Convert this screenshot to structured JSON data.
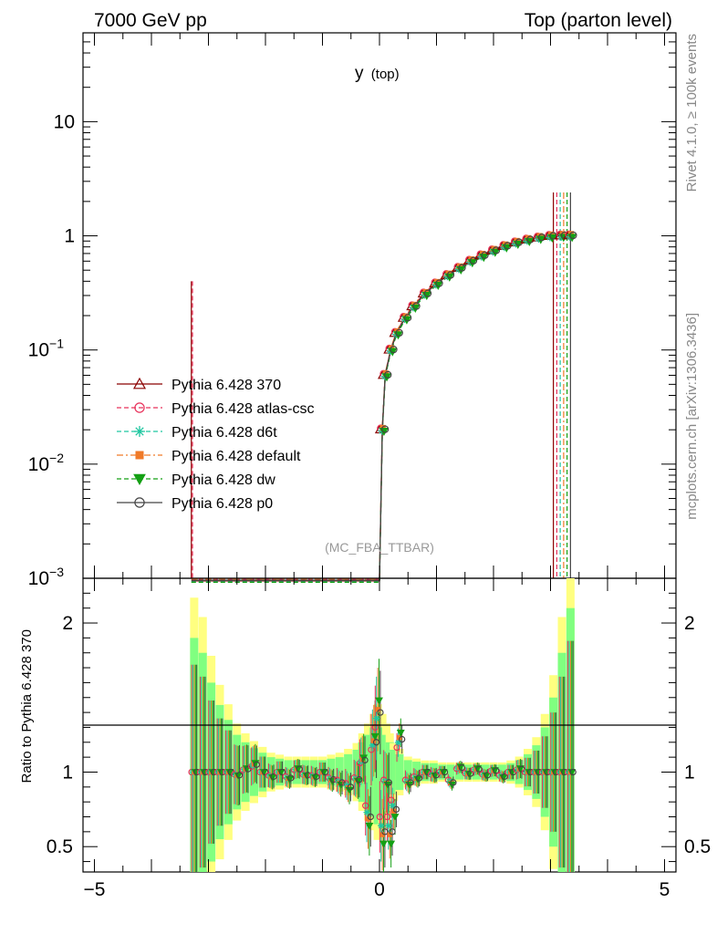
{
  "header": {
    "left": "7000 GeV pp",
    "right": "Top (parton level)"
  },
  "observable": {
    "main": "y",
    "sub": "(top)"
  },
  "side_labels": {
    "rivet": "Rivet 4.1.0, ≥ 100k events",
    "mcplots": "mcplots.cern.ch [arXiv:1306.3436]"
  },
  "analysis_label": "(MC_FBA_TTBAR)",
  "ratio_ylabel": "Ratio to Pythia 6.428 370",
  "colors": {
    "s370": "#8b0000",
    "atlas": "#e8305a",
    "d6t": "#1fc7a0",
    "default": "#f07a28",
    "dw": "#14a014",
    "p0": "#444444",
    "band_yellow": "#ffff80",
    "band_green": "#80ff80"
  },
  "chart_data": {
    "type": "line",
    "x_scale": "linear",
    "y_scale": "log",
    "xlim": [
      -5.2,
      5.2
    ],
    "ylim": [
      0.001,
      60
    ],
    "ratio_ylim": [
      0.33,
      2.3
    ],
    "x_ticks": [
      "−5",
      "0",
      "5"
    ],
    "y_ticks": [
      {
        "value": 10,
        "label": "10"
      },
      {
        "value": 1,
        "label": "1"
      },
      {
        "value": 0.1,
        "label": "10",
        "sup": "−1"
      },
      {
        "value": 0.01,
        "label": "10",
        "sup": "−2"
      },
      {
        "value": 0.001,
        "label": "10",
        "sup": "−3"
      }
    ],
    "ratio_ticks": [
      {
        "value": 0.5,
        "label": "0.5"
      },
      {
        "value": 1,
        "label": "1"
      },
      {
        "value": 2,
        "label": "2"
      }
    ],
    "legend_position": "center-left",
    "series": [
      {
        "name": "Pythia 6.428 370",
        "marker": "triangle-open",
        "dash": "",
        "color": "#8b0000"
      },
      {
        "name": "Pythia 6.428 atlas-csc",
        "marker": "circle-open",
        "dash": "5,3",
        "color": "#e8305a"
      },
      {
        "name": "Pythia 6.428 d6t",
        "marker": "star",
        "dash": "5,3",
        "color": "#1fc7a0"
      },
      {
        "name": "Pythia 6.428 default",
        "marker": "square",
        "dash": "7,3,2,3",
        "color": "#f07a28"
      },
      {
        "name": "Pythia 6.428 dw",
        "marker": "triangle-down",
        "dash": "5,3",
        "color": "#14a014"
      },
      {
        "name": "Pythia 6.428 p0",
        "marker": "circle-open",
        "dash": "",
        "color": "#444444"
      }
    ],
    "main_points": [
      {
        "x": -3.3,
        "y": 0.00095
      },
      {
        "x": 0.0,
        "y": 0.00095
      },
      {
        "x": 0.05,
        "y": 0.02
      },
      {
        "x": 0.1,
        "y": 0.06
      },
      {
        "x": 0.2,
        "y": 0.1
      },
      {
        "x": 0.3,
        "y": 0.14
      },
      {
        "x": 0.45,
        "y": 0.19
      },
      {
        "x": 0.6,
        "y": 0.24
      },
      {
        "x": 0.8,
        "y": 0.31
      },
      {
        "x": 1.0,
        "y": 0.38
      },
      {
        "x": 1.2,
        "y": 0.45
      },
      {
        "x": 1.4,
        "y": 0.52
      },
      {
        "x": 1.6,
        "y": 0.6
      },
      {
        "x": 1.8,
        "y": 0.67
      },
      {
        "x": 2.0,
        "y": 0.74
      },
      {
        "x": 2.2,
        "y": 0.81
      },
      {
        "x": 2.4,
        "y": 0.87
      },
      {
        "x": 2.6,
        "y": 0.92
      },
      {
        "x": 2.8,
        "y": 0.96
      },
      {
        "x": 3.0,
        "y": 0.99
      },
      {
        "x": 3.2,
        "y": 1.0
      },
      {
        "x": 3.35,
        "y": 1.0
      }
    ],
    "ratio_points": [
      {
        "x": -3.25,
        "y": 1.0,
        "err": 0.9
      },
      {
        "x": -3.1,
        "y": 1.0,
        "err": 0.8
      },
      {
        "x": -2.95,
        "y": 1.0,
        "err": 0.6
      },
      {
        "x": -2.8,
        "y": 1.0,
        "err": 0.45
      },
      {
        "x": -2.65,
        "y": 1.0,
        "err": 0.35
      },
      {
        "x": -2.5,
        "y": 0.98,
        "err": 0.25
      },
      {
        "x": -2.35,
        "y": 1.02,
        "err": 0.2
      },
      {
        "x": -2.2,
        "y": 1.05,
        "err": 0.16
      },
      {
        "x": -2.05,
        "y": 1.0,
        "err": 0.13
      },
      {
        "x": -1.9,
        "y": 0.97,
        "err": 0.1
      },
      {
        "x": -1.75,
        "y": 1.0,
        "err": 0.09
      },
      {
        "x": -1.6,
        "y": 0.96,
        "err": 0.08
      },
      {
        "x": -1.45,
        "y": 1.02,
        "err": 0.08
      },
      {
        "x": -1.3,
        "y": 0.98,
        "err": 0.08
      },
      {
        "x": -1.15,
        "y": 0.97,
        "err": 0.08
      },
      {
        "x": -1.0,
        "y": 1.0,
        "err": 0.08
      },
      {
        "x": -0.85,
        "y": 0.95,
        "err": 0.09
      },
      {
        "x": -0.7,
        "y": 0.93,
        "err": 0.1
      },
      {
        "x": -0.55,
        "y": 0.9,
        "err": 0.12
      },
      {
        "x": -0.4,
        "y": 0.95,
        "err": 0.15
      },
      {
        "x": -0.3,
        "y": 1.08,
        "err": 0.2
      },
      {
        "x": -0.2,
        "y": 0.7,
        "err": 0.25
      },
      {
        "x": -0.1,
        "y": 1.2,
        "err": 0.3
      },
      {
        "x": -0.03,
        "y": 1.4,
        "err": 0.35
      },
      {
        "x": 0.05,
        "y": 0.6,
        "err": 0.3
      },
      {
        "x": 0.12,
        "y": 0.93,
        "err": 0.25
      },
      {
        "x": 0.18,
        "y": 0.6,
        "err": 0.2
      },
      {
        "x": 0.25,
        "y": 0.75,
        "err": 0.15
      },
      {
        "x": 0.35,
        "y": 1.22,
        "err": 0.12
      },
      {
        "x": 0.5,
        "y": 0.93,
        "err": 0.08
      },
      {
        "x": 0.65,
        "y": 0.96,
        "err": 0.07
      },
      {
        "x": 0.8,
        "y": 1.0,
        "err": 0.06
      },
      {
        "x": 0.95,
        "y": 0.98,
        "err": 0.06
      },
      {
        "x": 1.1,
        "y": 1.0,
        "err": 0.05
      },
      {
        "x": 1.25,
        "y": 0.93,
        "err": 0.05
      },
      {
        "x": 1.4,
        "y": 1.03,
        "err": 0.05
      },
      {
        "x": 1.55,
        "y": 0.99,
        "err": 0.05
      },
      {
        "x": 1.7,
        "y": 1.02,
        "err": 0.05
      },
      {
        "x": 1.85,
        "y": 0.98,
        "err": 0.05
      },
      {
        "x": 2.0,
        "y": 1.01,
        "err": 0.05
      },
      {
        "x": 2.15,
        "y": 0.97,
        "err": 0.05
      },
      {
        "x": 2.3,
        "y": 1.0,
        "err": 0.06
      },
      {
        "x": 2.45,
        "y": 1.02,
        "err": 0.08
      },
      {
        "x": 2.6,
        "y": 1.0,
        "err": 0.12
      },
      {
        "x": 2.75,
        "y": 1.0,
        "err": 0.18
      },
      {
        "x": 2.9,
        "y": 1.0,
        "err": 0.3
      },
      {
        "x": 3.05,
        "y": 1.0,
        "err": 0.5
      },
      {
        "x": 3.2,
        "y": 1.0,
        "err": 0.8
      },
      {
        "x": 3.35,
        "y": 1.0,
        "err": 1.1
      }
    ]
  }
}
